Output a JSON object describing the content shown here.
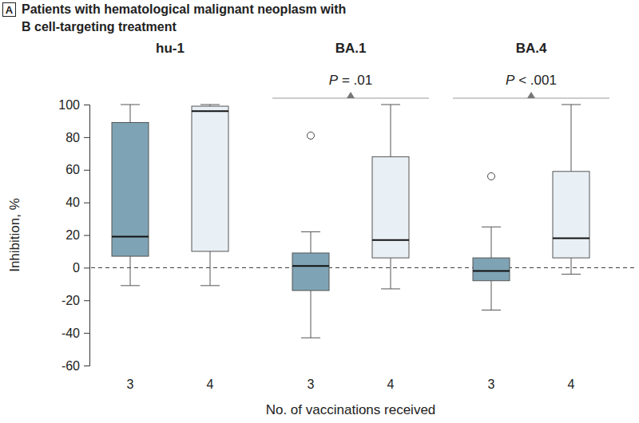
{
  "chart_data": {
    "type": "box",
    "panel_label": "A",
    "title": [
      "Patients with hematological malignant neoplasm with",
      "B cell-targeting treatment"
    ],
    "ylabel": "Inhibition, %",
    "xlabel": "No. of vaccinations received",
    "ylim": [
      -60,
      100
    ],
    "yticks": [
      -60,
      -40,
      -20,
      0,
      20,
      40,
      60,
      80,
      100
    ],
    "reference_line": 0,
    "categories": [
      "3",
      "4"
    ],
    "colors": [
      "#7ea3b4",
      "#e8eff5"
    ],
    "groups": [
      {
        "name": "hu-1",
        "boxes": [
          {
            "min": -11,
            "q1": 7,
            "median": 19,
            "q3": 89,
            "max": 100
          },
          {
            "min": -11,
            "q1": 10,
            "median": 96,
            "q3": 99,
            "max": 100
          }
        ]
      },
      {
        "name": "BA.1",
        "p_value": "P = .01",
        "boxes": [
          {
            "min": -43,
            "q1": -14,
            "median": 1,
            "q3": 9,
            "max": 22,
            "outliers": [
              81
            ]
          },
          {
            "min": -13,
            "q1": 6,
            "median": 17,
            "q3": 68,
            "max": 100
          }
        ]
      },
      {
        "name": "BA.4",
        "p_value": "P < .001",
        "boxes": [
          {
            "min": -26,
            "q1": -8,
            "median": -2,
            "q3": 6,
            "max": 25,
            "outliers": [
              56
            ]
          },
          {
            "min": -4,
            "q1": 6,
            "median": 18,
            "q3": 59,
            "max": 100
          }
        ]
      }
    ]
  }
}
